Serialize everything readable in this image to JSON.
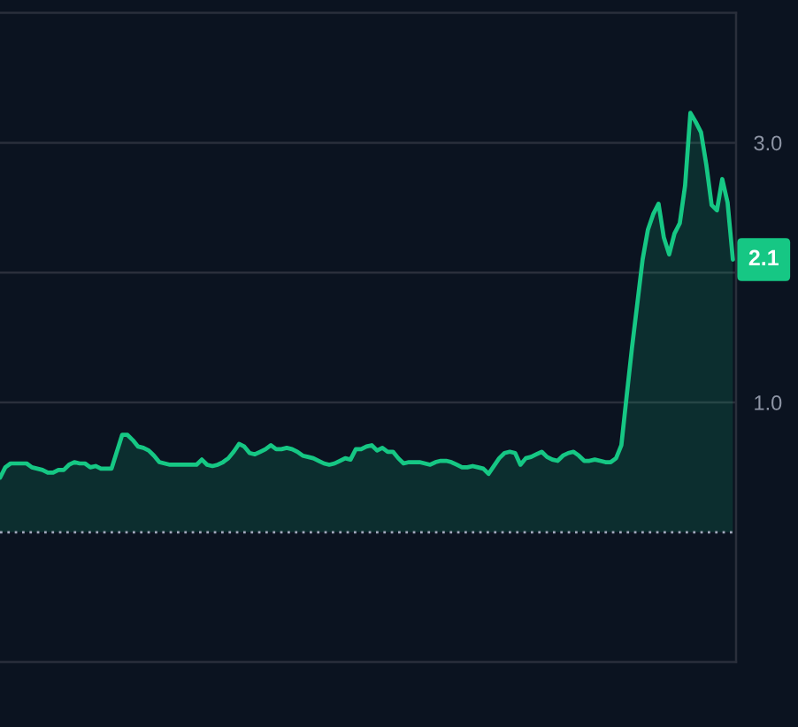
{
  "chart_data": {
    "type": "area",
    "categories": [
      null,
      null,
      null,
      null,
      null,
      null,
      null,
      null,
      null,
      null,
      null,
      null,
      null,
      null,
      null,
      null,
      null,
      null,
      null,
      null,
      null,
      null,
      null,
      null,
      null,
      null,
      null,
      null,
      null,
      null,
      null,
      null,
      null,
      null,
      null,
      null,
      null,
      null,
      null,
      null,
      null,
      null,
      null,
      null,
      null,
      null,
      null,
      null,
      null,
      null,
      null,
      null,
      null,
      null,
      null,
      null,
      null,
      null,
      null,
      null,
      null,
      null,
      null,
      null,
      null,
      null,
      null,
      null,
      null,
      null,
      null,
      null,
      null,
      null,
      null,
      null,
      null,
      null,
      null,
      null,
      null,
      null,
      null,
      null,
      null,
      null,
      null,
      null,
      null,
      null,
      null,
      null,
      null,
      null,
      null,
      null,
      null,
      null,
      null,
      null,
      null,
      null,
      null,
      null,
      null,
      null,
      null,
      null,
      null,
      null,
      null,
      null,
      null,
      null,
      null,
      null,
      null,
      null,
      null,
      null,
      null,
      null,
      null,
      null,
      null,
      null,
      null,
      null,
      null,
      null,
      null,
      null,
      null,
      null,
      null,
      null,
      null,
      null,
      null
    ],
    "series": [
      {
        "color": "#16c784",
        "values": [
          0.42,
          0.5,
          0.53,
          0.53,
          0.53,
          0.53,
          0.5,
          0.49,
          0.48,
          0.46,
          0.46,
          0.48,
          0.48,
          0.52,
          0.54,
          0.53,
          0.53,
          0.5,
          0.51,
          0.49,
          0.49,
          0.49,
          0.62,
          0.75,
          0.75,
          0.71,
          0.66,
          0.65,
          0.63,
          0.59,
          0.54,
          0.53,
          0.52,
          0.52,
          0.52,
          0.52,
          0.52,
          0.52,
          0.56,
          0.52,
          0.51,
          0.52,
          0.54,
          0.57,
          0.62,
          0.68,
          0.66,
          0.61,
          0.6,
          0.62,
          0.64,
          0.67,
          0.64,
          0.64,
          0.65,
          0.64,
          0.62,
          0.59,
          0.58,
          0.57,
          0.55,
          0.53,
          0.52,
          0.53,
          0.55,
          0.57,
          0.56,
          0.64,
          0.64,
          0.66,
          0.67,
          0.63,
          0.65,
          0.62,
          0.62,
          0.57,
          0.53,
          0.54,
          0.54,
          0.54,
          0.53,
          0.52,
          0.54,
          0.55,
          0.55,
          0.54,
          0.52,
          0.5,
          0.5,
          0.51,
          0.5,
          0.49,
          0.45,
          0.51,
          0.57,
          0.61,
          0.62,
          0.61,
          0.52,
          0.57,
          0.58,
          0.6,
          0.62,
          0.58,
          0.56,
          0.55,
          0.59,
          0.61,
          0.62,
          0.59,
          0.55,
          0.55,
          0.56,
          0.55,
          0.54,
          0.54,
          0.57,
          0.67,
          1.05,
          1.42,
          1.76,
          2.1,
          2.33,
          2.45,
          2.53,
          2.27,
          2.14,
          2.3,
          2.38,
          2.67,
          3.23,
          3.16,
          3.08,
          2.83,
          2.52,
          2.48,
          2.72,
          2.54,
          2.1
        ]
      }
    ],
    "ylim": [
      -1,
      4
    ],
    "yticks": [
      {
        "value": 1,
        "label": "1.0"
      },
      {
        "value": 2,
        "label": null
      },
      {
        "value": 3,
        "label": "3.0"
      }
    ],
    "grid": "y",
    "tick_labels": "y",
    "ref_lines": [
      {
        "axis": "y",
        "value": 0,
        "line_style": "dotted",
        "color": "#a1a7bb"
      }
    ],
    "annotations": [
      {
        "text": "2.1",
        "y": 2.1
      }
    ]
  }
}
